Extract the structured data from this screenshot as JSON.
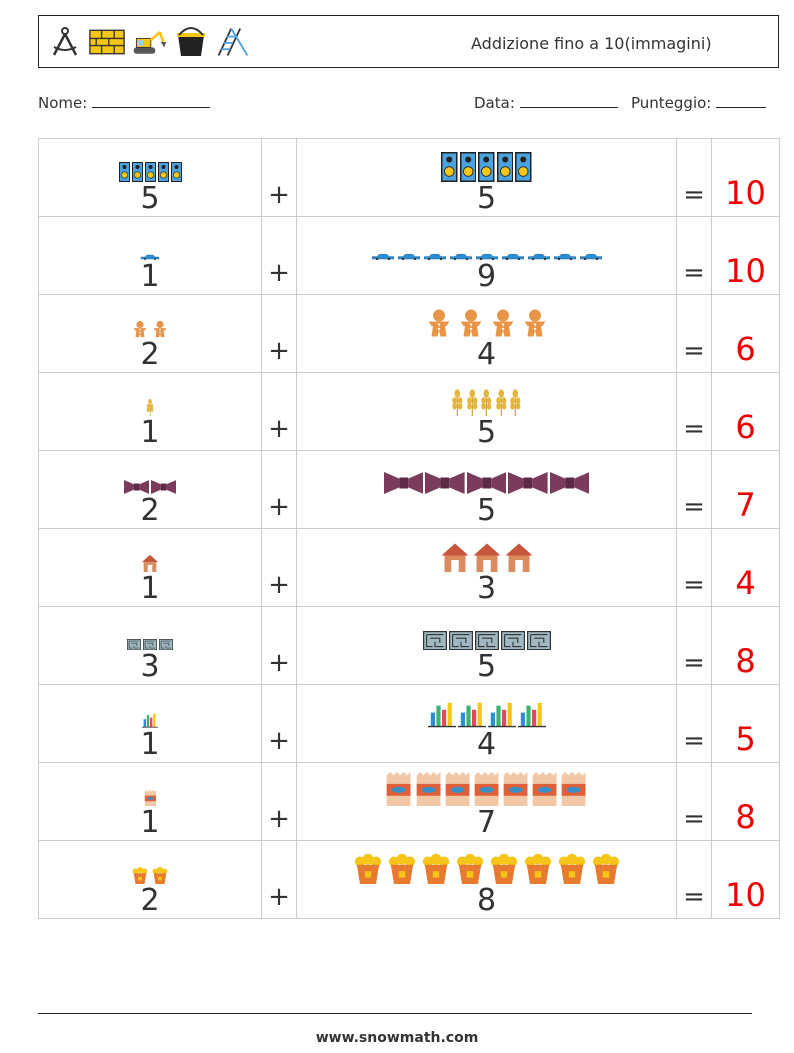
{
  "header": {
    "title": "Addizione fino a 10(immagini)",
    "icons": [
      "compass-icon",
      "brick-wall-icon",
      "excavator-icon",
      "bucket-icon",
      "ladder-icon"
    ]
  },
  "info": {
    "name_label": "Nome:",
    "date_label": "Data:",
    "score_label": "Punteggio:"
  },
  "operators": {
    "plus": "+",
    "equals": "="
  },
  "rows": [
    {
      "a": "5",
      "b": "5",
      "answer": "10",
      "item": "speaker-icon"
    },
    {
      "a": "1",
      "b": "9",
      "answer": "10",
      "item": "car-icon"
    },
    {
      "a": "2",
      "b": "4",
      "answer": "6",
      "item": "gingerbread-icon"
    },
    {
      "a": "1",
      "b": "5",
      "answer": "6",
      "item": "wheat-icon"
    },
    {
      "a": "2",
      "b": "5",
      "answer": "7",
      "item": "bowtie-icon"
    },
    {
      "a": "1",
      "b": "3",
      "answer": "4",
      "item": "house-icon"
    },
    {
      "a": "3",
      "b": "5",
      "answer": "8",
      "item": "maze-icon"
    },
    {
      "a": "1",
      "b": "4",
      "answer": "5",
      "item": "bar-chart-icon"
    },
    {
      "a": "1",
      "b": "7",
      "answer": "8",
      "item": "canned-fish-icon"
    },
    {
      "a": "2",
      "b": "8",
      "answer": "10",
      "item": "popcorn-icon"
    }
  ],
  "footer": {
    "text": "www.snowmath.com"
  }
}
